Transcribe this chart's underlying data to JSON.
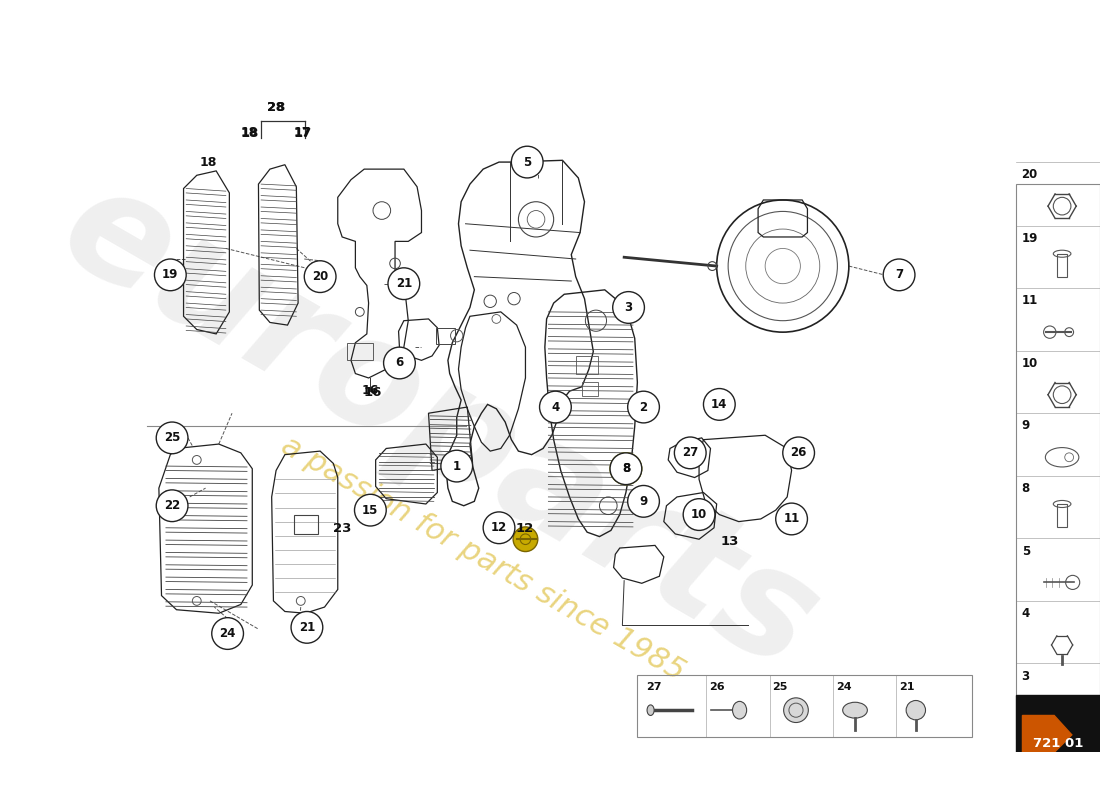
{
  "background_color": "#ffffff",
  "part_number": "721 01",
  "watermark1": "europarts",
  "watermark2": "a passion for parts since 1985",
  "right_panel_nums": [
    "20",
    "19",
    "11",
    "10",
    "9",
    "8",
    "5",
    "4",
    "3"
  ],
  "bottom_panel_nums": [
    "27",
    "26",
    "25",
    "24",
    "21"
  ],
  "lc": "#222222",
  "lw": 0.9
}
